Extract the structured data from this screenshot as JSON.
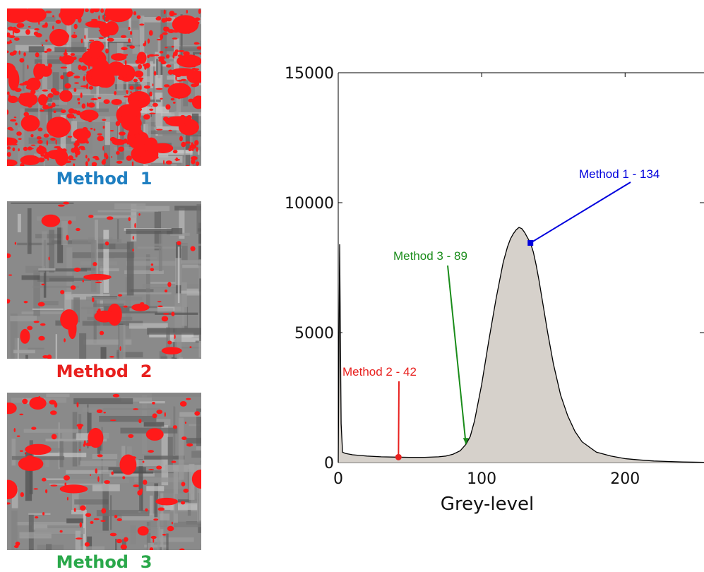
{
  "panels": [
    {
      "word": "Method",
      "number": "1",
      "color": "#1f7fc1",
      "coverage": 0.55
    },
    {
      "word": "Method",
      "number": "2",
      "color": "#e8201e",
      "coverage": 0.05
    },
    {
      "word": "Method",
      "number": "3",
      "color": "#2aa84a",
      "coverage": 0.1
    }
  ],
  "chart_data": {
    "type": "area",
    "xlabel": "Grey-level",
    "ylabel": "",
    "xlim": [
      0,
      255
    ],
    "ylim": [
      0,
      15000
    ],
    "xticks": [
      0,
      100,
      200
    ],
    "yticks": [
      0,
      5000,
      10000,
      15000
    ],
    "fill_color": "#d6d1cb",
    "line_color": "#000000",
    "series": [
      {
        "x": [
          0,
          1,
          2,
          3,
          5,
          10,
          20,
          30,
          40,
          50,
          60,
          70,
          75,
          80,
          85,
          89,
          92,
          95,
          100,
          105,
          110,
          115,
          118,
          120,
          122,
          124,
          126,
          128,
          130,
          132,
          134,
          136,
          138,
          140,
          143,
          146,
          150,
          155,
          160,
          165,
          170,
          180,
          190,
          200,
          210,
          220,
          230,
          240,
          255
        ],
        "y": [
          0,
          8400,
          1500,
          400,
          350,
          300,
          250,
          220,
          210,
          200,
          200,
          220,
          250,
          320,
          450,
          700,
          1000,
          1600,
          3000,
          4700,
          6300,
          7700,
          8300,
          8600,
          8800,
          8950,
          9050,
          9000,
          8850,
          8650,
          8450,
          8100,
          7600,
          7000,
          6000,
          5000,
          3800,
          2600,
          1800,
          1200,
          800,
          400,
          250,
          150,
          100,
          60,
          40,
          25,
          10
        ]
      }
    ],
    "thresholds": [
      {
        "label": "Method  1 - 134",
        "value": 134,
        "color": "#0000dd"
      },
      {
        "label": "Method  2 - 42",
        "value": 42,
        "color": "#e8201e"
      },
      {
        "label": "Method  3 - 89",
        "value": 89,
        "color": "#1a8c1a"
      }
    ]
  }
}
